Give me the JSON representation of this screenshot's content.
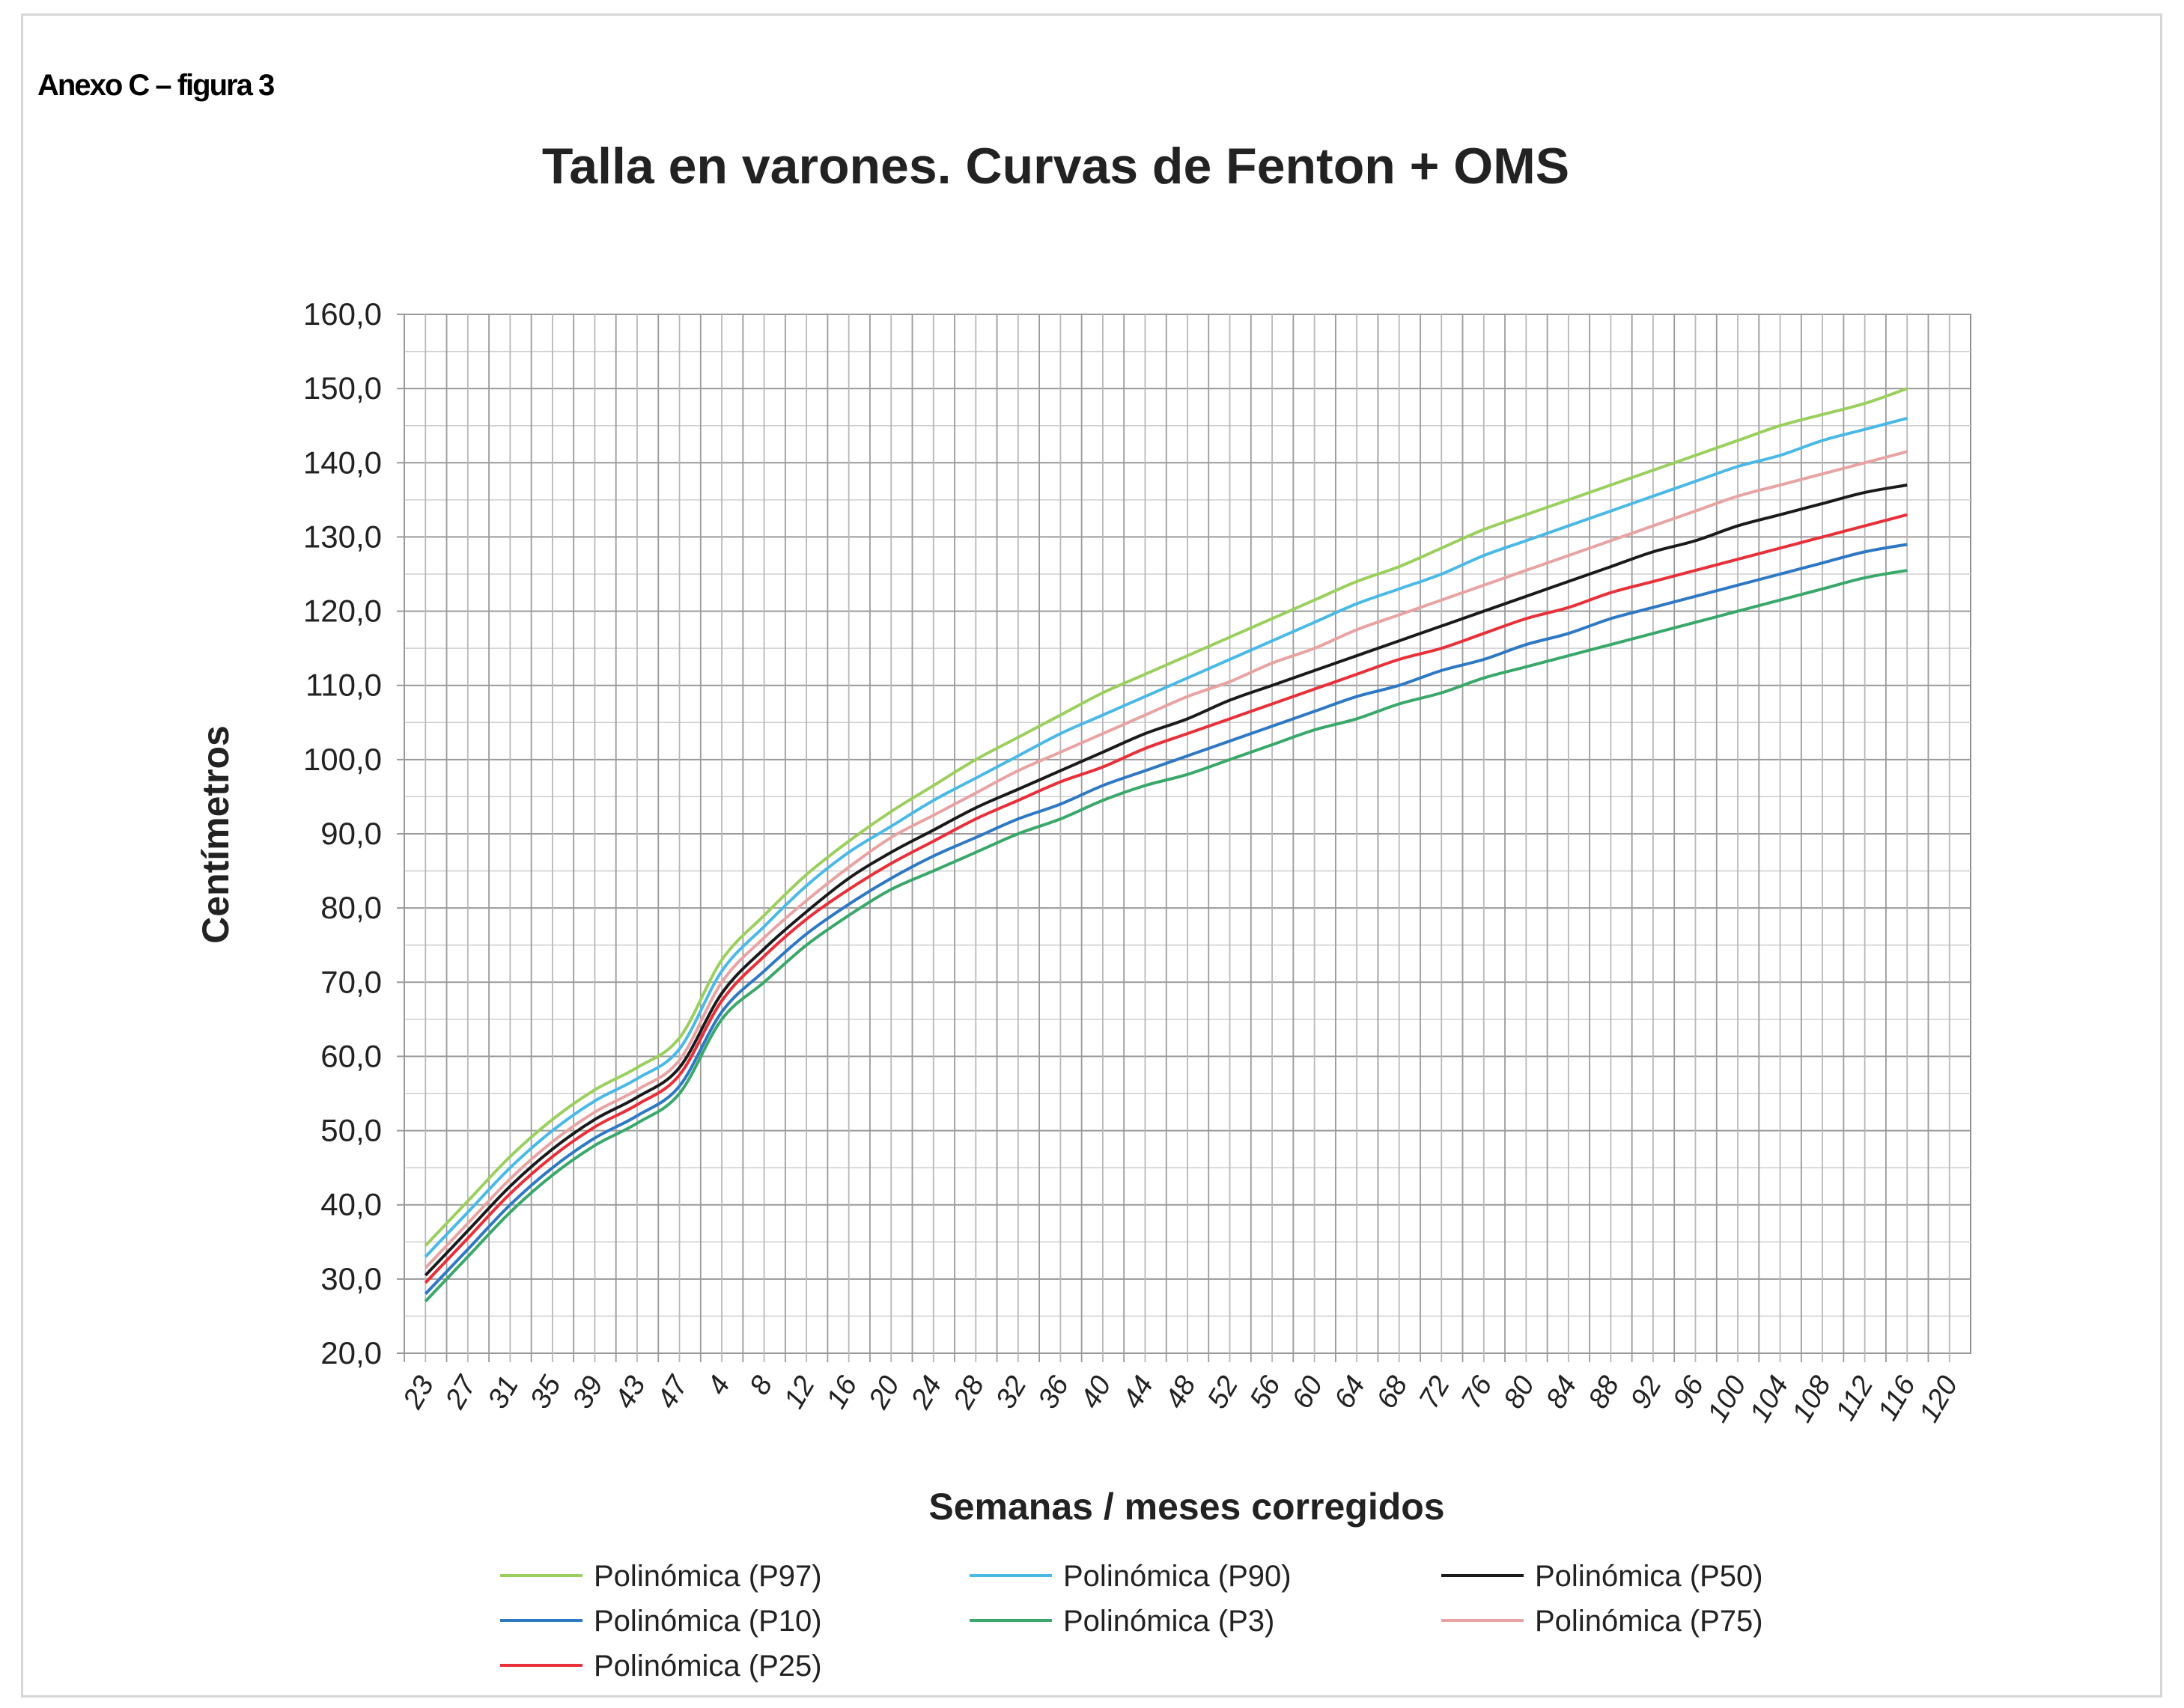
{
  "page": {
    "caption": "Anexo C – figura 3"
  },
  "chart_data": {
    "type": "line",
    "title": "Talla en varones. Curvas de Fenton + OMS",
    "xlabel": "Semanas / meses corregidos",
    "ylabel": "Centímetros",
    "ylim": [
      20,
      160
    ],
    "yticks": [
      "20,0",
      "30,0",
      "40,0",
      "50,0",
      "60,0",
      "70,0",
      "80,0",
      "90,0",
      "100,0",
      "110,0",
      "120,0",
      "130,0",
      "140,0",
      "150,0",
      "160,0"
    ],
    "xtick_labels": [
      "23",
      "27",
      "31",
      "35",
      "39",
      "43",
      "47",
      "4",
      "8",
      "12",
      "16",
      "20",
      "24",
      "28",
      "32",
      "36",
      "40",
      "44",
      "48",
      "52",
      "56",
      "60",
      "64",
      "68",
      "72",
      "76",
      "80",
      "84",
      "88",
      "92",
      "96",
      "100",
      "104",
      "108",
      "112",
      "116",
      "120"
    ],
    "x": [
      "23",
      "27",
      "31",
      "35",
      "39",
      "43",
      "47",
      "4",
      "8",
      "12",
      "16",
      "20",
      "24",
      "28",
      "32",
      "36",
      "40",
      "44",
      "48",
      "52",
      "56",
      "60",
      "64",
      "68",
      "72",
      "76",
      "80",
      "84",
      "88",
      "92",
      "96",
      "100",
      "104",
      "108",
      "112",
      "116"
    ],
    "grid": true,
    "legend_position": "bottom",
    "series": [
      {
        "name": "Polinómica (P97)",
        "color": "#9bcf5e",
        "values": [
          34.5,
          40.5,
          46.5,
          51.5,
          55.5,
          58.5,
          62.5,
          73.0,
          79.0,
          84.5,
          89.0,
          93.0,
          96.5,
          100.0,
          103.0,
          106.0,
          109.0,
          111.5,
          114.0,
          116.5,
          119.0,
          121.5,
          124.0,
          126.0,
          128.5,
          131.0,
          133.0,
          135.0,
          137.0,
          139.0,
          141.0,
          143.0,
          145.0,
          146.5,
          148.0,
          150.0
        ]
      },
      {
        "name": "Polinómica (P90)",
        "color": "#4bb9e6",
        "values": [
          33.0,
          39.0,
          45.0,
          50.0,
          54.0,
          57.0,
          61.0,
          71.5,
          77.5,
          83.0,
          87.5,
          91.0,
          94.5,
          97.5,
          100.5,
          103.5,
          106.0,
          108.5,
          111.0,
          113.5,
          116.0,
          118.5,
          121.0,
          123.0,
          125.0,
          127.5,
          129.5,
          131.5,
          133.5,
          135.5,
          137.5,
          139.5,
          141.0,
          143.0,
          144.5,
          146.0
        ]
      },
      {
        "name": "Polinómica (P50)",
        "color": "#1a1a1a",
        "values": [
          30.5,
          36.5,
          42.5,
          47.5,
          51.5,
          54.5,
          58.5,
          68.5,
          74.5,
          79.5,
          84.0,
          87.5,
          90.5,
          93.5,
          96.0,
          98.5,
          101.0,
          103.5,
          105.5,
          108.0,
          110.0,
          112.0,
          114.0,
          116.0,
          118.0,
          120.0,
          122.0,
          124.0,
          126.0,
          128.0,
          129.5,
          131.5,
          133.0,
          134.5,
          136.0,
          137.0
        ]
      },
      {
        "name": "Polinómica (P10)",
        "color": "#2f78c4",
        "values": [
          28.0,
          34.0,
          40.0,
          45.0,
          49.0,
          52.0,
          56.0,
          66.0,
          71.5,
          76.5,
          80.5,
          84.0,
          87.0,
          89.5,
          92.0,
          94.0,
          96.5,
          98.5,
          100.5,
          102.5,
          104.5,
          106.5,
          108.5,
          110.0,
          112.0,
          113.5,
          115.5,
          117.0,
          119.0,
          120.5,
          122.0,
          123.5,
          125.0,
          126.5,
          128.0,
          129.0
        ]
      },
      {
        "name": "Polinómica (P3)",
        "color": "#3aa86a",
        "values": [
          27.0,
          33.0,
          39.0,
          44.0,
          48.0,
          51.0,
          55.0,
          65.0,
          70.0,
          75.0,
          79.0,
          82.5,
          85.0,
          87.5,
          90.0,
          92.0,
          94.5,
          96.5,
          98.0,
          100.0,
          102.0,
          104.0,
          105.5,
          107.5,
          109.0,
          111.0,
          112.5,
          114.0,
          115.5,
          117.0,
          118.5,
          120.0,
          121.5,
          123.0,
          124.5,
          125.5
        ]
      },
      {
        "name": "Polinómica (P75)",
        "color": "#e8a3a3",
        "values": [
          31.5,
          37.5,
          43.5,
          48.5,
          52.5,
          55.5,
          59.5,
          70.0,
          76.0,
          81.0,
          85.5,
          89.5,
          92.5,
          95.5,
          98.5,
          101.0,
          103.5,
          106.0,
          108.5,
          110.5,
          113.0,
          115.0,
          117.5,
          119.5,
          121.5,
          123.5,
          125.5,
          127.5,
          129.5,
          131.5,
          133.5,
          135.5,
          137.0,
          138.5,
          140.0,
          141.5
        ]
      },
      {
        "name": "Polinómica (P25)",
        "color": "#e8303a",
        "values": [
          29.5,
          35.5,
          41.5,
          46.5,
          50.5,
          53.5,
          57.5,
          67.5,
          73.5,
          78.5,
          82.5,
          86.0,
          89.0,
          92.0,
          94.5,
          97.0,
          99.0,
          101.5,
          103.5,
          105.5,
          107.5,
          109.5,
          111.5,
          113.5,
          115.0,
          117.0,
          119.0,
          120.5,
          122.5,
          124.0,
          125.5,
          127.0,
          128.5,
          130.0,
          131.5,
          133.0
        ]
      }
    ]
  }
}
